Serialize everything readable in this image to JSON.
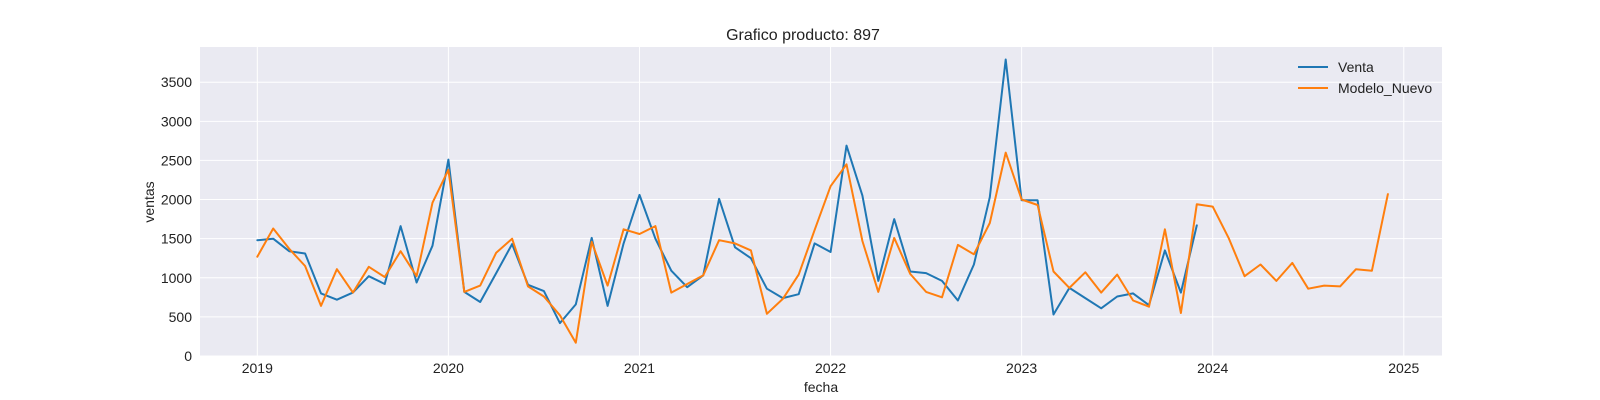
{
  "chart_data": {
    "type": "line",
    "title": "Grafico producto: 897",
    "xlabel": "fecha",
    "ylabel": "ventas",
    "ylim": [
      0,
      3950
    ],
    "xlim": [
      2018.7,
      2025.2
    ],
    "grid": true,
    "legend_position": "top-right",
    "background_color": "#eaeaf2",
    "x_ticks": [
      2019,
      2020,
      2021,
      2022,
      2023,
      2024,
      2025
    ],
    "x_tick_labels": [
      "2019",
      "2020",
      "2021",
      "2022",
      "2023",
      "2024",
      "2025"
    ],
    "y_ticks": [
      0,
      500,
      1000,
      1500,
      2000,
      2500,
      3000,
      3500
    ],
    "y_tick_labels": [
      "0",
      "500",
      "1000",
      "1500",
      "2000",
      "2500",
      "3000",
      "3500"
    ],
    "series": [
      {
        "name": "Venta",
        "color": "#1f77b4",
        "start": "2019-01",
        "values": [
          1480,
          1500,
          1340,
          1310,
          800,
          720,
          810,
          1020,
          920,
          1660,
          940,
          1410,
          2510,
          820,
          690,
          1060,
          1430,
          910,
          830,
          420,
          660,
          1510,
          640,
          1440,
          2060,
          1500,
          1090,
          880,
          1030,
          2010,
          1390,
          1250,
          860,
          740,
          790,
          1440,
          1330,
          2690,
          2050,
          960,
          1750,
          1080,
          1060,
          960,
          710,
          1170,
          2030,
          3790,
          1990,
          1990,
          530,
          870,
          740,
          610,
          760,
          800,
          650,
          1350,
          810,
          1670
        ]
      },
      {
        "name": "Modelo_Nuevo",
        "color": "#ff7f0e",
        "start": "2019-01",
        "values": [
          1270,
          1630,
          1370,
          1150,
          640,
          1110,
          810,
          1140,
          1010,
          1340,
          1020,
          1960,
          2380,
          820,
          900,
          1320,
          1500,
          890,
          760,
          520,
          170,
          1460,
          900,
          1620,
          1560,
          1660,
          810,
          920,
          1030,
          1480,
          1440,
          1350,
          540,
          730,
          1040,
          1610,
          2170,
          2450,
          1470,
          820,
          1510,
          1050,
          820,
          750,
          1420,
          1300,
          1700,
          2600,
          2000,
          1930,
          1080,
          870,
          1070,
          810,
          1040,
          710,
          630,
          1620,
          550,
          1940,
          1910,
          1510,
          1020,
          1170,
          960,
          1190,
          860,
          900,
          890,
          1110,
          1090,
          2070
        ]
      }
    ]
  }
}
